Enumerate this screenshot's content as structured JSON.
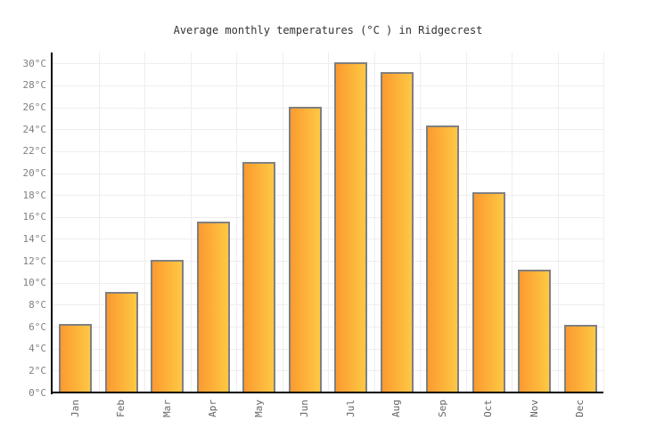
{
  "chart_data": {
    "type": "bar",
    "title": "Average monthly temperatures (°C ) in Ridgecrest",
    "categories": [
      "Jan",
      "Feb",
      "Mar",
      "Apr",
      "May",
      "Jun",
      "Jul",
      "Aug",
      "Sep",
      "Oct",
      "Nov",
      "Dec"
    ],
    "values": [
      6.2,
      9.1,
      12,
      15.5,
      20.9,
      26,
      30,
      29.1,
      24.3,
      18.2,
      11.1,
      6.1
    ],
    "unit": "°C",
    "xlabel": "",
    "ylabel": "",
    "ylim": [
      0,
      31
    ],
    "ytick_step": 2,
    "ytick_labels": [
      "0°C",
      "2°C",
      "4°C",
      "6°C",
      "8°C",
      "10°C",
      "12°C",
      "14°C",
      "16°C",
      "18°C",
      "20°C",
      "22°C",
      "24°C",
      "26°C",
      "28°C",
      "30°C"
    ],
    "grid": true,
    "legend_position": "none",
    "x_tick_rotation": -90,
    "colors": {
      "background": "#ffffff",
      "title": "#333333",
      "bar_gradient_left": "#fb9a2f",
      "bar_gradient_right": "#fec844",
      "bar_border": "#808080",
      "gridline": "#eeeeee",
      "axis": "#000000",
      "y_tick_label": "#808080",
      "x_tick_label": "#666666"
    }
  }
}
